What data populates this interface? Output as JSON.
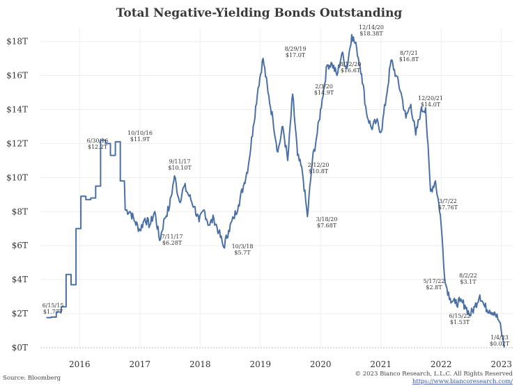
{
  "chart_data": {
    "type": "line",
    "title": "Total Negative-Yielding Bonds Outstanding",
    "xlabel": "",
    "ylabel": "",
    "x_start": 2015.45,
    "x_end": 2023.05,
    "xlim": [
      2015.35,
      2023.2
    ],
    "ylim": [
      0,
      18.8
    ],
    "y_ticks": [
      0,
      2,
      4,
      6,
      8,
      10,
      12,
      14,
      16,
      18
    ],
    "y_tick_labels": [
      "$0T",
      "$2T",
      "$4T",
      "$6T",
      "$8T",
      "$10T",
      "$12T",
      "$14T",
      "$16T",
      "$18T"
    ],
    "x_ticks": [
      2016,
      2017,
      2018,
      2019,
      2020,
      2021,
      2022,
      2023
    ],
    "x_tick_labels": [
      "2016",
      "2017",
      "2018",
      "2019",
      "2020",
      "2021",
      "2022",
      "2023"
    ],
    "series": [
      {
        "name": "Total Negative-Yielding Bonds Outstanding ($T)",
        "values": [
          1.77,
          1.8,
          2.1,
          2.4,
          4.3,
          3.7,
          7.0,
          8.9,
          8.7,
          8.8,
          9.5,
          12.2,
          12.0,
          11.3,
          12.1,
          9.8,
          8.1,
          8.0,
          7.4,
          6.9,
          7.6,
          7.2,
          8.0,
          6.3,
          7.6,
          8.3,
          10.1,
          8.6,
          9.5,
          8.9,
          8.3,
          7.4,
          8.1,
          7.2,
          7.6,
          6.8,
          5.9,
          6.9,
          7.6,
          8.4,
          9.5,
          10.7,
          13.0,
          15.3,
          17.0,
          15.0,
          13.4,
          11.5,
          13.0,
          11.0,
          14.9,
          11.3,
          10.3,
          7.7,
          11.0,
          12.6,
          14.6,
          16.6,
          16.7,
          16.0,
          17.3,
          16.4,
          18.4,
          17.6,
          16.1,
          13.8,
          12.9,
          13.3,
          12.7,
          14.7,
          16.9,
          16.0,
          15.0,
          13.5,
          14.3,
          12.5,
          13.9,
          14.1,
          9.2,
          9.8,
          7.8,
          3.8,
          2.9,
          2.6,
          2.7,
          2.5,
          1.9,
          2.4,
          3.1,
          2.4,
          2.2,
          2.1,
          1.5,
          0.02
        ]
      }
    ],
    "annotations": [
      {
        "date": "6/15/15",
        "value": "$1.77T"
      },
      {
        "date": "6/30/16",
        "value": "$12.2T"
      },
      {
        "date": "10/10/16",
        "value": "$11.9T"
      },
      {
        "date": "7/11/17",
        "value": "$6.28T"
      },
      {
        "date": "9/11/17",
        "value": "$10.10T"
      },
      {
        "date": "10/3/18",
        "value": "$5.7T"
      },
      {
        "date": "8/29/19",
        "value": "$17.0T"
      },
      {
        "date": "2/3/20",
        "value": "$14.9T"
      },
      {
        "date": "2/12/20",
        "value": "$10.8T"
      },
      {
        "date": "3/18/20",
        "value": "$7.68T"
      },
      {
        "date": "8/12/20",
        "value": "$16.6T"
      },
      {
        "date": "12/14/20",
        "value": "$18.38T"
      },
      {
        "date": "8/7/21",
        "value": "$16.8T"
      },
      {
        "date": "12/20/21",
        "value": "$14.0T"
      },
      {
        "date": "3/7/22",
        "value": "$7.76T"
      },
      {
        "date": "5/17/22",
        "value": "$2.8T"
      },
      {
        "date": "8/2/22",
        "value": "$3.1T"
      },
      {
        "date": "6/15/22",
        "value": "$1.53T"
      },
      {
        "date": "1/4/23",
        "value": "$0.02T"
      }
    ]
  },
  "footer": {
    "source": "Source: Bloomberg",
    "copyright": "© 2023 Bianco Research, L.L.C. All Rights Reserved",
    "url": "https://www.biancoresearch.com/"
  }
}
